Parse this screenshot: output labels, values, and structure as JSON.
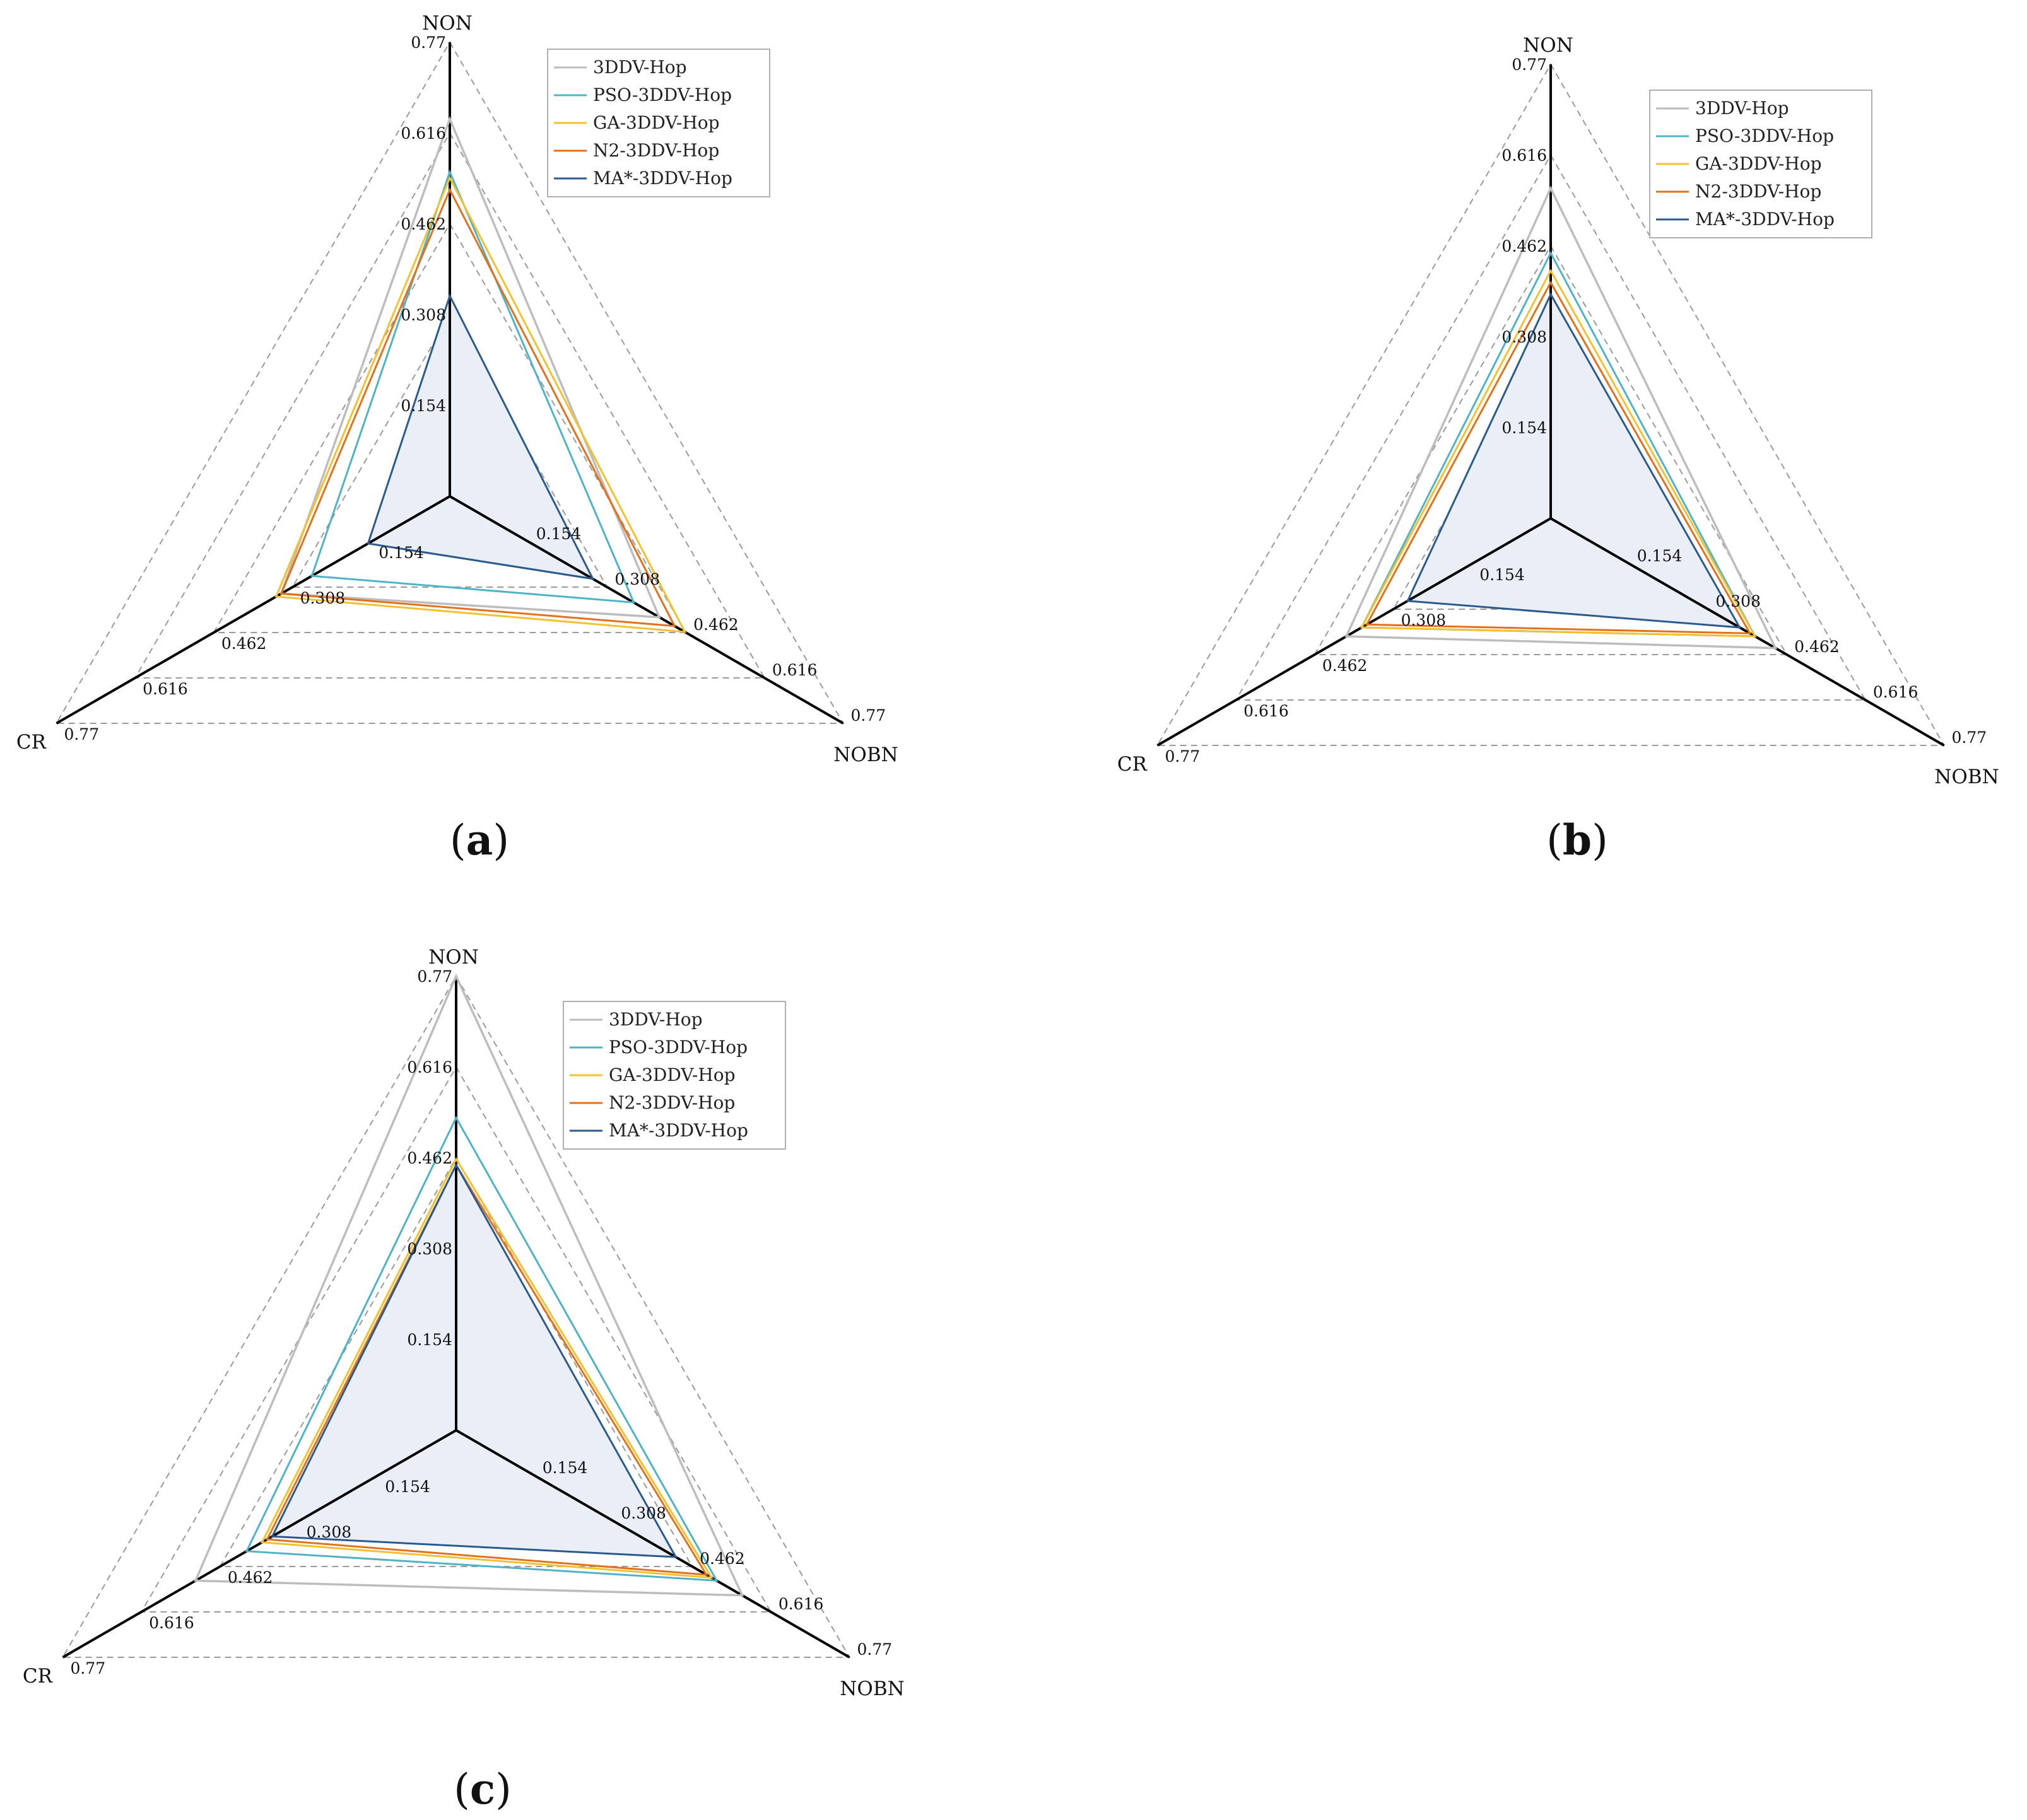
{
  "figure": {
    "series_names": [
      "3DDV-Hop",
      "PSO-3DDV-Hop",
      "GA-3DDV-Hop",
      "N2-3DDV-Hop",
      "MA*-3DDV-Hop"
    ],
    "series_colors": [
      "#bdbdbd",
      "#4fb3c8",
      "#f2c12e",
      "#e3711c",
      "#2b5a8c"
    ],
    "fill_color": "#e9eef7"
  },
  "chart_data": [
    {
      "type": "radar",
      "caption_open": "(",
      "caption_letter": "a",
      "caption_close": ")",
      "axes": [
        "NON",
        "NOBN",
        "CR"
      ],
      "range": [
        0,
        0.77
      ],
      "ticks": [
        "0.154",
        "0.308",
        "0.462",
        "0.616",
        "0.77"
      ],
      "legend_position": "top-right",
      "series": [
        {
          "name": "3DDV-Hop",
          "values": [
            0.64,
            0.41,
            0.33
          ]
        },
        {
          "name": "PSO-3DDV-Hop",
          "values": [
            0.55,
            0.36,
            0.27
          ]
        },
        {
          "name": "GA-3DDV-Hop",
          "values": [
            0.54,
            0.46,
            0.34
          ]
        },
        {
          "name": "N2-3DDV-Hop",
          "values": [
            0.52,
            0.44,
            0.33
          ]
        },
        {
          "name": "MA*-3DDV-Hop",
          "values": [
            0.34,
            0.28,
            0.16
          ]
        }
      ]
    },
    {
      "type": "radar",
      "caption_open": "(",
      "caption_letter": "b",
      "caption_close": ")",
      "axes": [
        "NON",
        "NOBN",
        "CR"
      ],
      "range": [
        0,
        0.77
      ],
      "ticks": [
        "0.154",
        "0.308",
        "0.462",
        "0.616",
        "0.77"
      ],
      "legend_position": "top-right",
      "series": [
        {
          "name": "3DDV-Hop",
          "values": [
            0.56,
            0.44,
            0.4
          ]
        },
        {
          "name": "PSO-3DDV-Hop",
          "values": [
            0.45,
            0.4,
            0.37
          ]
        },
        {
          "name": "GA-3DDV-Hop",
          "values": [
            0.42,
            0.4,
            0.37
          ]
        },
        {
          "name": "N2-3DDV-Hop",
          "values": [
            0.4,
            0.39,
            0.36
          ]
        },
        {
          "name": "MA*-3DDV-Hop",
          "values": [
            0.38,
            0.37,
            0.28
          ]
        }
      ]
    },
    {
      "type": "radar",
      "caption_open": "(",
      "caption_letter": "c",
      "caption_close": ")",
      "axes": [
        "NON",
        "NOBN",
        "CR"
      ],
      "range": [
        0,
        0.77
      ],
      "ticks": [
        "0.154",
        "0.308",
        "0.462",
        "0.616",
        "0.77"
      ],
      "legend_position": "top-right",
      "series": [
        {
          "name": "3DDV-Hop",
          "values": [
            0.77,
            0.56,
            0.51
          ]
        },
        {
          "name": "PSO-3DDV-Hop",
          "values": [
            0.53,
            0.51,
            0.41
          ]
        },
        {
          "name": "GA-3DDV-Hop",
          "values": [
            0.46,
            0.5,
            0.38
          ]
        },
        {
          "name": "N2-3DDV-Hop",
          "values": [
            0.45,
            0.49,
            0.37
          ]
        },
        {
          "name": "MA*-3DDV-Hop",
          "values": [
            0.45,
            0.43,
            0.36
          ]
        }
      ]
    }
  ]
}
